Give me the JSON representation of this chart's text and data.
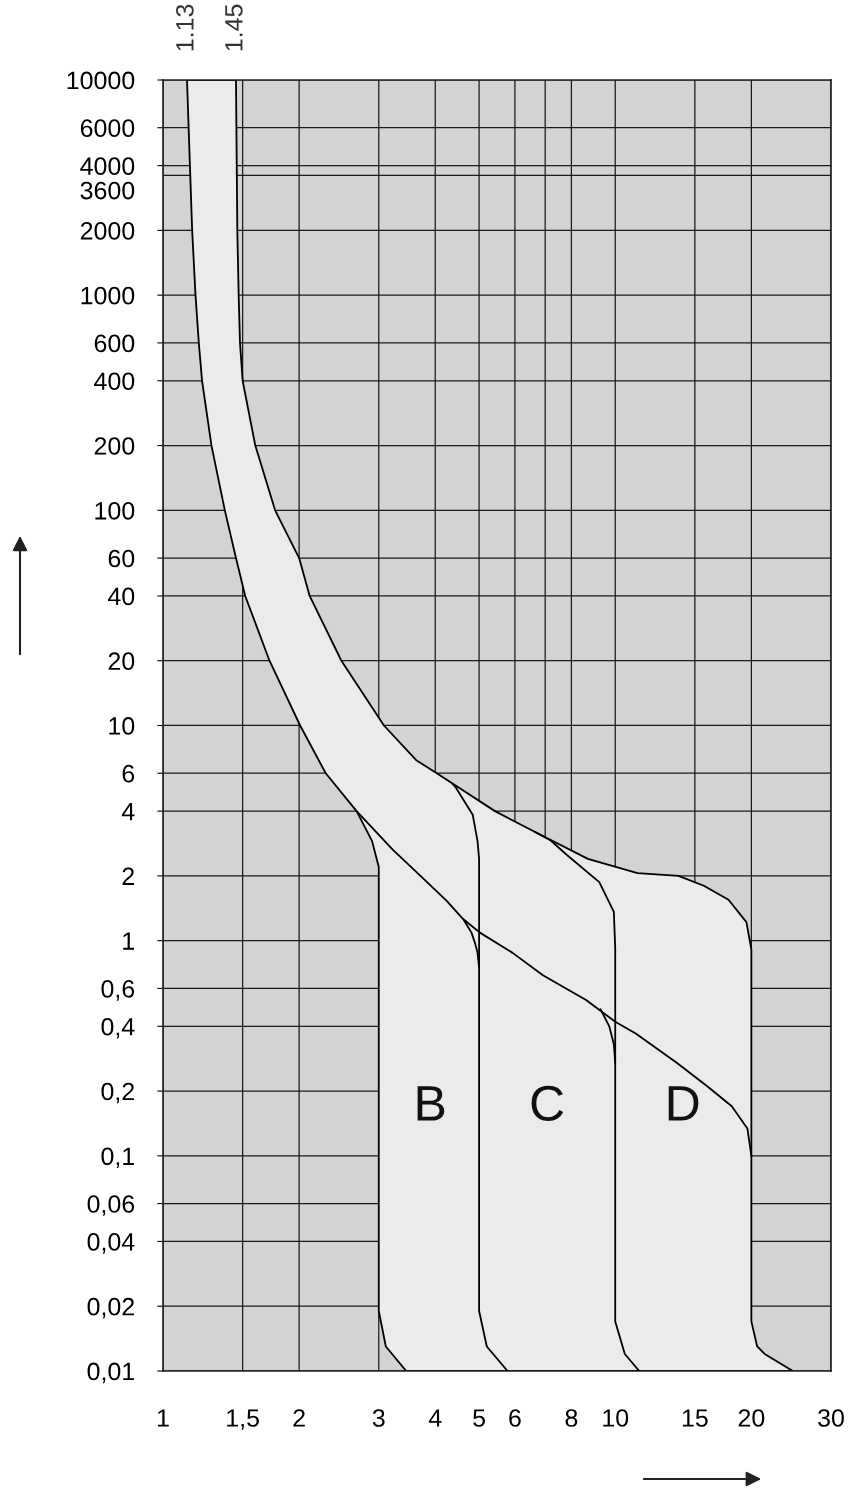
{
  "chart_data": {
    "type": "line",
    "log": "xy",
    "grid": true,
    "xlim": [
      1,
      30
    ],
    "ylim": [
      0.01,
      10000
    ],
    "xticks": [
      1,
      {
        "value": 1.5,
        "label": "1,5"
      },
      2,
      3,
      4,
      5,
      6,
      {
        "value": 7,
        "label": null
      },
      8,
      10,
      15,
      20,
      30
    ],
    "yticks": [
      {
        "value": 0.01,
        "label": "0,01"
      },
      {
        "value": 0.02,
        "label": "0,02"
      },
      {
        "value": 0.04,
        "label": "0,04"
      },
      {
        "value": 0.06,
        "label": "0,06"
      },
      {
        "value": 0.1,
        "label": "0,1"
      },
      {
        "value": 0.2,
        "label": "0,2"
      },
      {
        "value": 0.4,
        "label": "0,4"
      },
      {
        "value": 0.6,
        "label": "0,6"
      },
      1,
      2,
      4,
      6,
      10,
      20,
      40,
      60,
      100,
      200,
      400,
      600,
      1000,
      2000,
      4000,
      6000,
      10000
    ],
    "ref_lines": [
      {
        "axis": "y",
        "value": 3600,
        "label": "3600",
        "color": "#1a1a1a"
      }
    ],
    "annotations": [
      {
        "text": "1.13",
        "x": 1.13,
        "y": 10000
      },
      {
        "text": "1.45",
        "x": 1.45,
        "y": 10000
      },
      "B",
      "C",
      "D"
    ],
    "series": [
      {
        "type": "area",
        "color": "#ebebeb",
        "x": [
          1.13,
          1.16,
          1.18,
          1.2,
          1.22,
          1.28,
          1.37,
          1.45,
          1.52,
          1.72,
          2.01,
          2.29,
          2.68,
          2.9,
          3,
          3,
          3.11,
          3.45,
          24.7,
          21.4,
          20.6,
          20,
          20,
          19.5,
          17.8,
          15.7,
          13.8,
          11.2,
          8.7,
          6.65,
          5.42,
          4.35,
          4.03,
          3.63,
          3.08,
          2.48,
          2.11,
          2,
          1.77,
          1.6,
          1.5,
          1.48,
          1.47,
          1.46,
          1.45
        ],
        "values": [
          10000,
          2000,
          1000,
          600,
          400,
          200,
          100,
          60,
          40,
          20,
          10,
          6,
          4,
          2.9,
          2.2,
          0.019,
          0.013,
          0.01,
          0.01,
          0.012,
          0.013,
          0.017,
          0.91,
          1.22,
          1.55,
          1.8,
          2,
          2.06,
          2.4,
          3.2,
          4,
          5.4,
          6,
          6.9,
          10,
          20,
          40,
          60,
          100,
          200,
          400,
          600,
          1000,
          2000,
          10000
        ]
      },
      {
        "color": "#000000",
        "x": [
          4.35,
          4.44,
          4.84,
          4.96,
          5,
          5,
          5.2,
          5.78
        ],
        "values": [
          5.4,
          5.15,
          3.85,
          2.9,
          2.4,
          0.019,
          0.013,
          0.01
        ]
      },
      {
        "color": "#000000",
        "x": [
          2.68,
          3.22,
          3.71,
          4.24,
          4.61,
          5.02,
          5.92,
          6.92,
          8.62,
          10,
          11.1,
          13.7,
          16,
          18.1,
          19.6,
          20
        ],
        "values": [
          4,
          2.65,
          2,
          1.53,
          1.26,
          1.09,
          0.88,
          0.69,
          0.53,
          0.42,
          0.37,
          0.27,
          0.21,
          0.17,
          0.134,
          0.1
        ]
      },
      {
        "color": "#000000",
        "x": [
          4.61,
          4.81,
          4.9,
          4.96,
          5
        ],
        "values": [
          1.26,
          1.09,
          0.97,
          0.88,
          0.75
        ]
      },
      {
        "color": "#000000",
        "x": [
          6.65,
          7.2,
          7.82,
          9.22,
          9.93,
          10,
          10,
          10.5,
          11.3
        ],
        "values": [
          3.2,
          2.92,
          2.5,
          1.87,
          1.36,
          0.92,
          0.017,
          0.012,
          0.01
        ]
      },
      {
        "color": "#000000",
        "x": [
          9.28,
          9.7,
          9.93,
          10
        ],
        "values": [
          0.48,
          0.4,
          0.33,
          0.27
        ]
      }
    ]
  }
}
